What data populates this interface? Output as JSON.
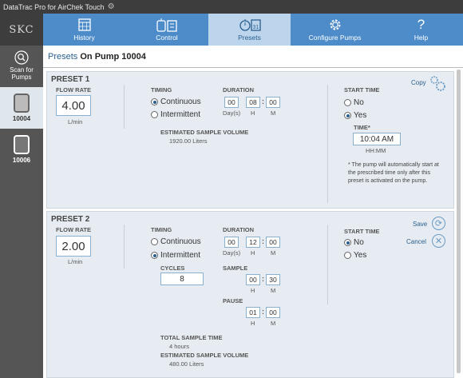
{
  "app": {
    "title": "DataTrac Pro for AirChek Touch"
  },
  "nav": {
    "logo": "SKC",
    "tabs": [
      {
        "label": "History",
        "icon": "calendar-icon"
      },
      {
        "label": "Control",
        "icon": "pump-control-icon"
      },
      {
        "label": "Presets",
        "icon": "stopwatch-calendar-icon"
      },
      {
        "label": "Configure Pumps",
        "icon": "gear-icon"
      },
      {
        "label": "Help",
        "icon": "question-icon"
      }
    ],
    "active_tab": "Presets"
  },
  "sidebar": {
    "scan_label": "Scan for Pumps",
    "pumps": [
      {
        "id": "10004",
        "selected": true
      },
      {
        "id": "10006",
        "selected": false
      }
    ]
  },
  "page": {
    "heading_prefix": "Presets",
    "heading_pump": "On Pump 10004"
  },
  "presets": [
    {
      "title": "PRESET 1",
      "flow_rate_label": "FLOW RATE",
      "flow_rate": "4.00",
      "flow_unit": "L/min",
      "timing_label": "TIMING",
      "continuous_label": "Continuous",
      "intermittent_label": "Intermittent",
      "timing": "Continuous",
      "duration_label": "DURATION",
      "duration": {
        "days": "00",
        "hours": "08",
        "minutes": "00"
      },
      "day_label": "Day(s)",
      "h_label": "H",
      "m_label": "M",
      "volume_label": "ESTIMATED SAMPLE VOLUME",
      "volume": "1920.00 Liters",
      "start_time_label": "START TIME",
      "no_label": "No",
      "yes_label": "Yes",
      "start_time": "Yes",
      "time_label": "TIME*",
      "time": "10:04 AM",
      "time_format": "HH:MM",
      "note": "* The pump will automatically start at the prescribed time only after this preset is activated on the pump.",
      "copy_label": "Copy"
    },
    {
      "title": "PRESET 2",
      "flow_rate_label": "FLOW RATE",
      "flow_rate": "2.00",
      "flow_unit": "L/min",
      "timing_label": "TIMING",
      "continuous_label": "Continuous",
      "intermittent_label": "Intermittent",
      "timing": "Intermittent",
      "duration_label": "DURATION",
      "duration": {
        "days": "00",
        "hours": "12",
        "minutes": "00"
      },
      "day_label": "Day(s)",
      "h_label": "H",
      "m_label": "M",
      "cycles_label": "CYCLES",
      "cycles": "8",
      "sample_label": "SAMPLE",
      "sample": {
        "hours": "00",
        "minutes": "30"
      },
      "pause_label": "PAUSE",
      "pause": {
        "hours": "01",
        "minutes": "00"
      },
      "total_label": "TOTAL SAMPLE TIME",
      "total": "4 hours",
      "volume_label": "ESTIMATED SAMPLE VOLUME",
      "volume": "480.00 Liters",
      "start_time_label": "START TIME",
      "no_label": "No",
      "yes_label": "Yes",
      "start_time": "No",
      "save_label": "Save",
      "cancel_label": "Cancel"
    }
  ],
  "colors": {
    "accent": "#4d8cc9",
    "active_tab": "#bcd5ec",
    "sidebar": "#555555",
    "card": "#e6ecf1"
  }
}
